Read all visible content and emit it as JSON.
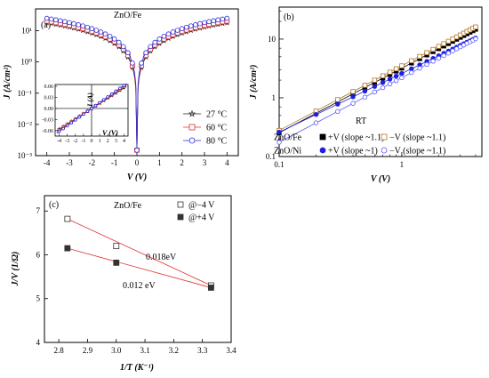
{
  "chart_data": [
    {
      "panel": "(a)",
      "type": "line",
      "title": "ZnO/Fe",
      "xlabel": "V (V)",
      "ylabel": "J (A/cm²)",
      "yscale": "log",
      "xlim": [
        -4.5,
        4.5
      ],
      "ylim": [
        0.001,
        50
      ],
      "xticks": [
        "-4",
        "-3",
        "-2",
        "-1",
        "0",
        "1",
        "2",
        "3",
        "4"
      ],
      "yticks": [
        "10⁻³",
        "10⁻²",
        "10⁻¹",
        "10⁰",
        "10¹"
      ],
      "legend": "right",
      "series": [
        {
          "name": "27 °C",
          "marker": "star",
          "color": "#222222",
          "Jmax": 18
        },
        {
          "name": "60 °C",
          "marker": "square",
          "color": "#e03030",
          "Jmax": 20
        },
        {
          "name": "80 °C",
          "marker": "circle",
          "color": "#2a2ad8",
          "Jmax": 24
        }
      ],
      "inset": {
        "xlabel": "V (V)",
        "ylabel": "I (A)",
        "xlim": [
          -4.5,
          4.5
        ],
        "ylim": [
          -0.075,
          0.065
        ],
        "xticks": [
          "-4",
          "-3",
          "-2",
          "-1",
          "0",
          "1",
          "2",
          "3",
          "4"
        ],
        "yticks": [
          "-0.06",
          "-0.03",
          "0.00",
          "0.03",
          "0.06"
        ],
        "slope": 0.014
      }
    },
    {
      "panel": "(b)",
      "type": "line",
      "annotation": "RT",
      "xlabel": "V (V)",
      "ylabel": "J (A/cm²)",
      "xscale": "log",
      "yscale": "log",
      "xlim": [
        0.1,
        4.5
      ],
      "ylim": [
        0.1,
        35
      ],
      "xticks": [
        "0.1",
        "1"
      ],
      "yticks": [
        "0.1",
        "1",
        "10"
      ],
      "legend_rows": [
        "ZnO/Fe",
        "ZnO/Ni"
      ],
      "series": [
        {
          "row": "ZnO/Fe",
          "name": "+V (slope ~1.1)",
          "marker": "square-filled",
          "color": "#000000",
          "J_at_1V": 3.2,
          "slope": 1.1
        },
        {
          "row": "ZnO/Fe",
          "name": "−V (slope ~1.1)",
          "marker": "square-open",
          "color": "#b07a2a",
          "J_at_1V": 3.5,
          "slope": 1.1
        },
        {
          "row": "ZnO/Ni",
          "name": "+V (slope ~1)",
          "marker": "circle-filled",
          "color": "#1f1fe0",
          "J_at_1V": 2.6,
          "slope": 1.0
        },
        {
          "row": "ZnO/Ni",
          "name": "−V (slope ~1.1)",
          "marker": "circle-open",
          "color": "#5a5aff",
          "J_at_1V": 2.2,
          "slope": 1.1
        }
      ]
    },
    {
      "panel": "(c)",
      "type": "scatter",
      "title": "ZnO/Fe",
      "xlabel": "1/T (K⁻¹)",
      "ylabel": "J/V (1/Ω)",
      "xlim": [
        2.75,
        3.4
      ],
      "ylim": [
        4,
        7.35
      ],
      "xticks": [
        "2.8",
        "2.9",
        "3.0",
        "3.1",
        "3.2",
        "3.3",
        "3.4"
      ],
      "yticks": [
        "4",
        "5",
        "6",
        "7"
      ],
      "legend": "top-right",
      "series": [
        {
          "name": "@−4 V",
          "marker": "square-open",
          "x": [
            2.83,
            3.0,
            3.33
          ],
          "y": [
            6.82,
            6.2,
            5.3
          ],
          "fit_label": "0.018eV"
        },
        {
          "name": "@+4 V",
          "marker": "square-filled",
          "x": [
            2.83,
            3.0,
            3.33
          ],
          "y": [
            6.15,
            5.82,
            5.25
          ],
          "fit_label": "0.012 eV"
        }
      ]
    }
  ]
}
